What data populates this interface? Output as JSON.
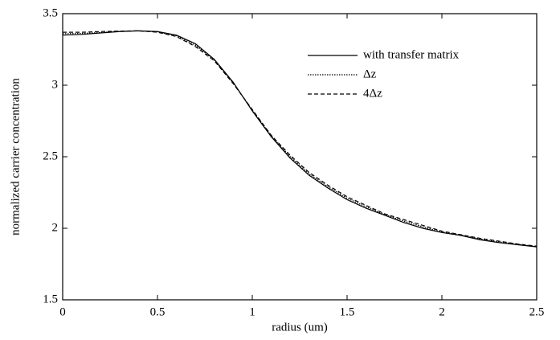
{
  "chart_data": {
    "type": "line",
    "x_label": "radius (um)",
    "y_label": "normalized carrier concentration",
    "x": [
      0,
      0.1,
      0.2,
      0.3,
      0.4,
      0.5,
      0.6,
      0.7,
      0.8,
      0.9,
      1.0,
      1.1,
      1.2,
      1.3,
      1.4,
      1.5,
      1.6,
      1.7,
      1.8,
      1.9,
      2.0,
      2.1,
      2.2,
      2.3,
      2.4,
      2.5
    ],
    "series": [
      {
        "name": "with transfer matrix",
        "color": "#000000",
        "dash": "solid",
        "values": [
          3.35,
          3.355,
          3.365,
          3.375,
          3.38,
          3.375,
          3.35,
          3.29,
          3.18,
          3.02,
          2.82,
          2.64,
          2.49,
          2.37,
          2.28,
          2.2,
          2.14,
          2.09,
          2.04,
          2.0,
          1.97,
          1.95,
          1.92,
          1.9,
          1.885,
          1.87
        ]
      },
      {
        "name": "Δz",
        "color": "#000000",
        "dash": "dotted",
        "values": [
          3.36,
          3.362,
          3.368,
          3.376,
          3.38,
          3.373,
          3.345,
          3.28,
          3.175,
          3.015,
          2.825,
          2.645,
          2.5,
          2.38,
          2.29,
          2.21,
          2.15,
          2.095,
          2.05,
          2.01,
          1.975,
          1.952,
          1.925,
          1.905,
          1.888,
          1.872
        ]
      },
      {
        "name": "4Δz",
        "color": "#000000",
        "dash": "dashed",
        "values": [
          3.37,
          3.37,
          3.375,
          3.378,
          3.38,
          3.37,
          3.34,
          3.27,
          3.17,
          3.01,
          2.83,
          2.65,
          2.51,
          2.39,
          2.3,
          2.22,
          2.16,
          2.1,
          2.06,
          2.02,
          1.98,
          1.955,
          1.93,
          1.91,
          1.89,
          1.875
        ]
      }
    ],
    "xlim": [
      0,
      2.5
    ],
    "ylim": [
      1.5,
      3.5
    ],
    "xticks": [
      0,
      0.5,
      1,
      1.5,
      2,
      2.5
    ],
    "yticks": [
      1.5,
      2,
      2.5,
      3,
      3.5
    ],
    "legend": "upper-right",
    "grid": false
  }
}
